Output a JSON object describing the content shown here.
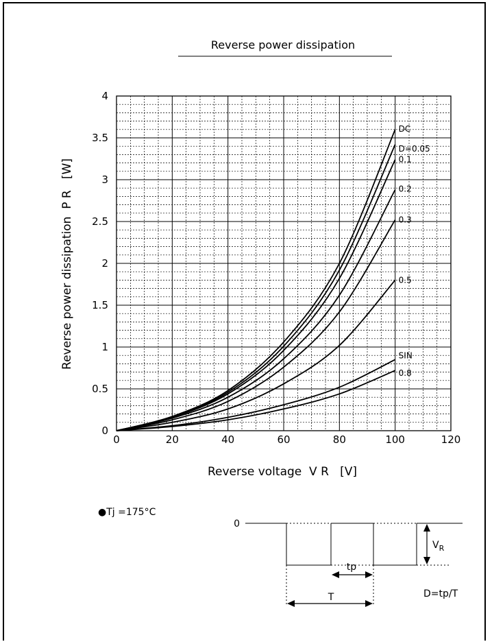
{
  "chart_data": {
    "type": "line",
    "title": "Reverse power dissipation",
    "xlabel": "Reverse voltage  V R   [V]",
    "ylabel": "Reverse power dissipation  P R   [W]",
    "xlim": [
      0,
      120
    ],
    "ylim": [
      0,
      4
    ],
    "x_ticks": [
      "0",
      "20",
      "40",
      "60",
      "80",
      "100",
      "120"
    ],
    "y_ticks": [
      "0",
      "0.5",
      "1",
      "1.5",
      "2",
      "2.5",
      "3",
      "3.5",
      "4"
    ],
    "grid": true,
    "series": [
      {
        "name": "DC",
        "x": [
          0,
          20,
          40,
          60,
          80,
          100
        ],
        "y": [
          0,
          0.17,
          0.48,
          1.06,
          2.0,
          3.6
        ]
      },
      {
        "name": "D=0.05",
        "x": [
          0,
          20,
          40,
          60,
          80,
          100
        ],
        "y": [
          0,
          0.165,
          0.46,
          1.01,
          1.92,
          3.42
        ]
      },
      {
        "name": "0.1",
        "x": [
          0,
          20,
          40,
          60,
          80,
          100
        ],
        "y": [
          0,
          0.16,
          0.44,
          0.96,
          1.82,
          3.24
        ]
      },
      {
        "name": "0.2",
        "x": [
          0,
          20,
          40,
          60,
          80,
          100
        ],
        "y": [
          0,
          0.15,
          0.4,
          0.86,
          1.62,
          2.88
        ]
      },
      {
        "name": "0.3",
        "x": [
          0,
          20,
          40,
          60,
          80,
          100
        ],
        "y": [
          0,
          0.13,
          0.35,
          0.76,
          1.42,
          2.52
        ]
      },
      {
        "name": "0.5",
        "x": [
          0,
          20,
          40,
          60,
          80,
          100
        ],
        "y": [
          0,
          0.1,
          0.26,
          0.56,
          1.02,
          1.8
        ]
      },
      {
        "name": "SIN",
        "x": [
          0,
          20,
          40,
          60,
          80,
          100
        ],
        "y": [
          0,
          0.06,
          0.16,
          0.31,
          0.52,
          0.85
        ]
      },
      {
        "name": "0.8",
        "x": [
          0,
          20,
          40,
          60,
          80,
          100
        ],
        "y": [
          0,
          0.05,
          0.13,
          0.26,
          0.44,
          0.72
        ]
      }
    ]
  },
  "conditions": {
    "bullet": "●",
    "tj_text": "Tj =175°C"
  },
  "waveform": {
    "zero_label": "0",
    "vr_label": "V",
    "vr_sub": "R",
    "tp_label": "tp",
    "t_label": "T",
    "duty_formula": "D=tp/T"
  }
}
